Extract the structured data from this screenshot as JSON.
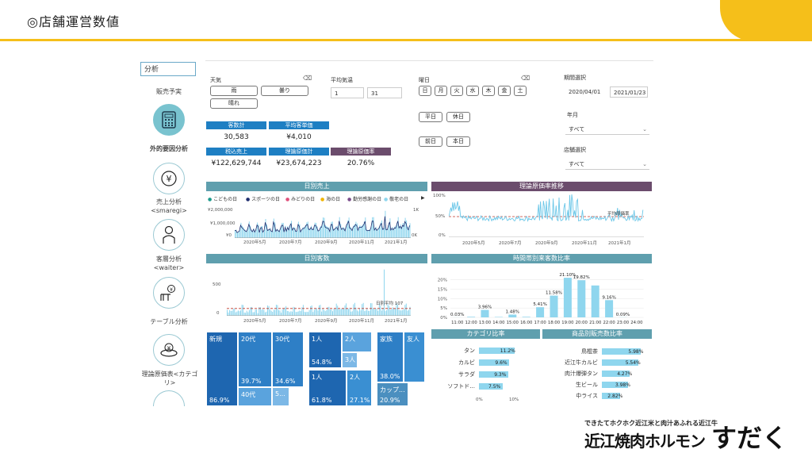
{
  "header": {
    "title": "◎店舗運営数値"
  },
  "sidebar": {
    "search": "分析",
    "items": [
      {
        "label": "販売予実",
        "icon": "none"
      },
      {
        "label": "外的要因分析",
        "icon": "calculator-icon",
        "active": true
      },
      {
        "label": "売上分析\n<smaregi>",
        "icon": "yen-coin-icon"
      },
      {
        "label": "客層分析\n<waiter>",
        "icon": "person-icon"
      },
      {
        "label": "テーブル分析",
        "icon": "table-icon"
      },
      {
        "label": "理論原価表<カテゴリ>",
        "icon": "food-plate-icon"
      }
    ]
  },
  "filters": {
    "weather": {
      "label": "天気",
      "options": [
        "雨",
        "曇り",
        "晴れ"
      ]
    },
    "temp": {
      "label": "平均気温",
      "min": "1",
      "max": "31"
    },
    "weekday": {
      "label": "曜日",
      "options": [
        "日",
        "月",
        "火",
        "水",
        "木",
        "金",
        "土"
      ]
    },
    "daytype": [
      "平日",
      "休日"
    ],
    "prevday": [
      "前日",
      "本日"
    ],
    "period": {
      "label": "期間選択",
      "from": "2020/04/01",
      "to": "2021/01/23"
    },
    "year": {
      "label": "年月",
      "value": "すべて"
    },
    "store": {
      "label": "店舗選択",
      "value": "すべて"
    }
  },
  "kpis": [
    {
      "label": "客数計",
      "value": "30,583"
    },
    {
      "label": "平均客単価",
      "value": "¥4,010"
    },
    {
      "label": "税込売上",
      "value": "¥122,629,744"
    },
    {
      "label": "理論原価計",
      "value": "¥23,674,223"
    },
    {
      "label": "理論原価率",
      "value": "20.76%"
    }
  ],
  "panels": {
    "daily_sales": "日別売上",
    "cost_rate": "理論原価率推移",
    "daily_customers": "日別客数",
    "hourly": "時間帯別来客数比率",
    "category": "カテゴリ比率",
    "product": "商品別販売数比率"
  },
  "colors": {
    "bar": "#8fd6ee",
    "navy": "#1f2d6e",
    "header": "#5f9fae",
    "purple": "#6b4c6c",
    "blue": "#1e7fc3",
    "accent": "#f5bf1a",
    "refline": "#c0392b"
  },
  "chart_data": [
    {
      "type": "line",
      "title": "日別売上",
      "legend": [
        "こどもの日",
        "スポーツの日",
        "みどりの日",
        "海の日",
        "勤労感謝の日",
        "敬老の日"
      ],
      "legend_colors": [
        "#39a0d8",
        "#1c9a8c",
        "#1f2d6e",
        "#e0507b",
        "#f0b400",
        "#7a4d8c",
        "#8fd6ee"
      ],
      "y_ticks_left": [
        "¥2,000,000",
        "¥1,000,000",
        "¥0"
      ],
      "y_ticks_right": [
        "1K",
        "0K"
      ],
      "x_ticks": [
        "2020年5月",
        "2020年7月",
        "2020年9月",
        "2020年11月",
        "2021年1月"
      ]
    },
    {
      "type": "line",
      "title": "理論原価率推移",
      "y_ticks": [
        "100%",
        "50%",
        "0%"
      ],
      "x_ticks": [
        "2020年5月",
        "2020年7月",
        "2020年9月",
        "2020年11月",
        "2021年1月"
      ],
      "annotation": "平均原価率"
    },
    {
      "type": "bar",
      "title": "日別客数",
      "y_ticks": [
        "500",
        "0"
      ],
      "x_ticks": [
        "2020年5月",
        "2020年7月",
        "2020年9月",
        "2020年11月",
        "2021年1月"
      ],
      "annotation": "日別平均 107",
      "average": 107
    },
    {
      "type": "bar",
      "title": "時間帯別来客数比率",
      "y_ticks": [
        "20%",
        "15%",
        "10%",
        "5%",
        "0%"
      ],
      "ylim": [
        0,
        22
      ],
      "categories": [
        "11:00",
        "12:00",
        "13:00",
        "14:00",
        "15:00",
        "16:00",
        "17:00",
        "18:00",
        "19:00",
        "20:00",
        "21:00",
        "22:00",
        "23:00",
        "24:00"
      ],
      "values": [
        0.03,
        0.3,
        3.96,
        0.2,
        1.48,
        0.3,
        5.41,
        11.58,
        21.1,
        19.82,
        17.0,
        9.16,
        0.09,
        0
      ],
      "labels": [
        "0.03%",
        "",
        "3.96%",
        "",
        "1.48%",
        "",
        "5.41%",
        "11.58%",
        "21.10%",
        "19.82%",
        "",
        "9.16%",
        "0.09%",
        ""
      ]
    },
    {
      "type": "bar",
      "title": "カテゴリ比率",
      "categories": [
        "タン",
        "カルビ",
        "サラダ",
        "ソフトド..."
      ],
      "values": [
        11.2,
        9.6,
        9.3,
        7.5
      ],
      "labels": [
        "11.2%",
        "9.6%",
        "9.3%",
        "7.5%"
      ],
      "x_ticks": [
        "0%",
        "10%"
      ],
      "xlim": [
        0,
        13
      ]
    },
    {
      "type": "bar",
      "title": "商品別販売数比率",
      "categories": [
        "鳥棍茶",
        "近江牛カルビ",
        "肉汁爆弾タン",
        "生ビール",
        "中ライス"
      ],
      "values": [
        5.98,
        5.54,
        4.27,
        3.98,
        2.82
      ],
      "labels": [
        "5.98%",
        "5.54%",
        "4.27%",
        "3.98%",
        "2.82%"
      ],
      "xlim": [
        0,
        6.3
      ]
    }
  ],
  "treemaps": [
    {
      "cells": [
        {
          "t": "新規",
          "p": "86.9%"
        },
        {
          "t": "20代",
          "p": "39.7%"
        },
        {
          "t": "30代",
          "p": "34.6%"
        },
        {
          "t": "40代",
          "p": ""
        },
        {
          "t": "5...",
          "p": ""
        }
      ]
    },
    {
      "cells": [
        {
          "t": "1人",
          "p": "54.8%"
        },
        {
          "t": "2人",
          "p": ""
        },
        {
          "t": "3人",
          "p": ""
        },
        {
          "t": "1人",
          "p": "61.8%"
        },
        {
          "t": "2人",
          "p": "27.1%"
        }
      ]
    },
    {
      "cells": [
        {
          "t": "家族",
          "p": "38.0%"
        },
        {
          "t": "友人",
          "p": ""
        },
        {
          "t": "カップ...",
          "p": "20.9%"
        }
      ]
    }
  ],
  "logo": {
    "tagline": "できたてホクホク近江米と肉汁あふれる近江牛",
    "name": "近江焼肉ホルモン",
    "brand": "すだく"
  }
}
